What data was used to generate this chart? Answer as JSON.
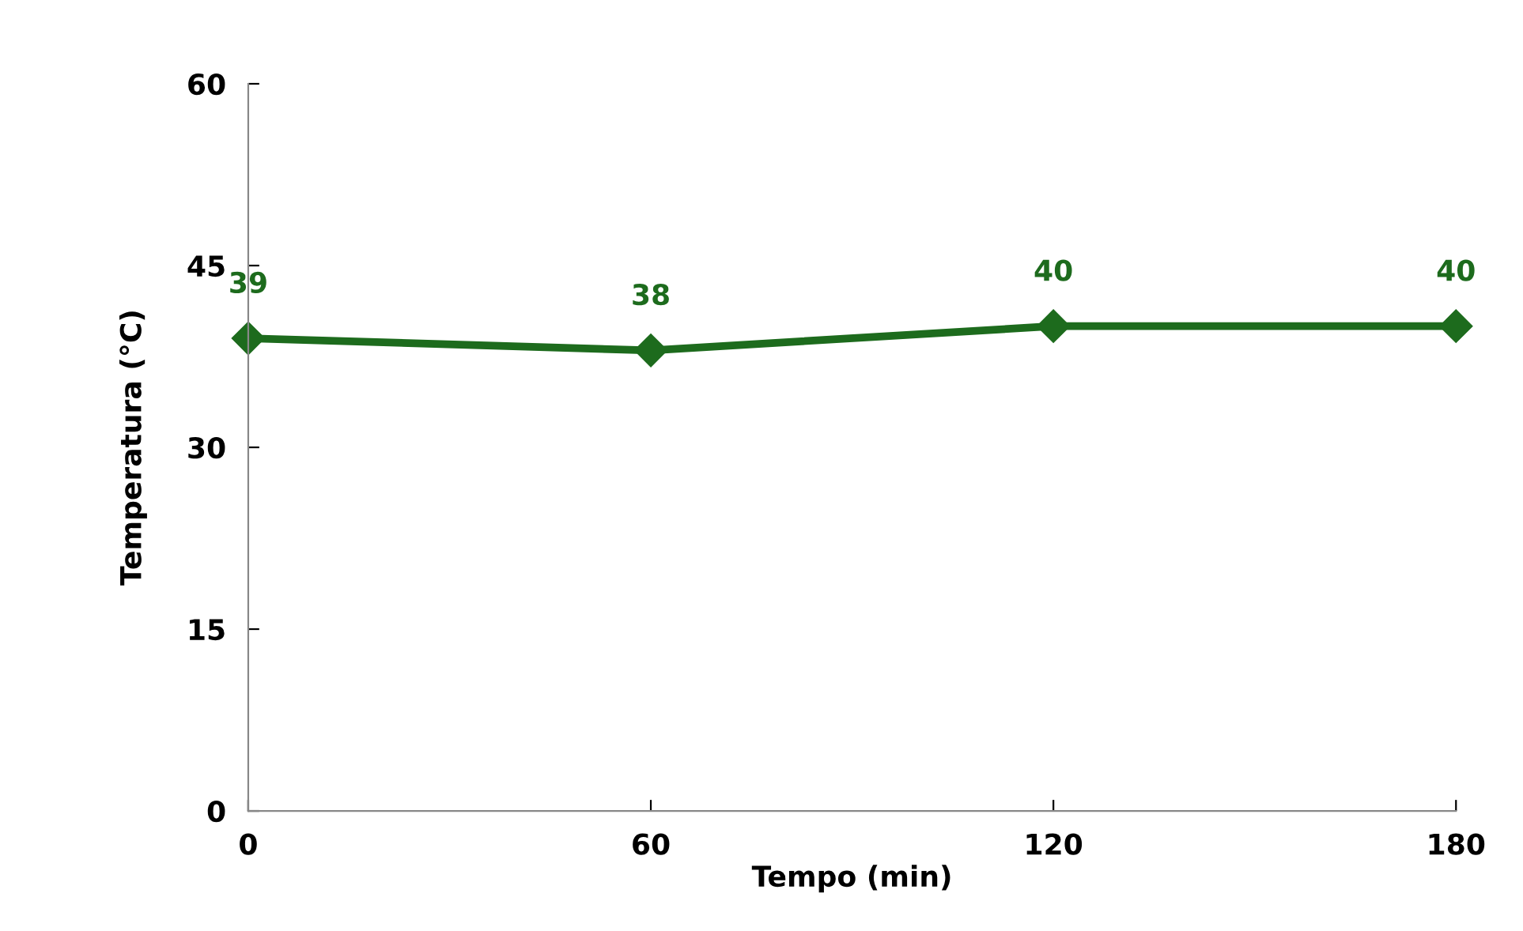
{
  "chart_data": {
    "type": "line",
    "xlabel": "Tempo (min)",
    "ylabel": "Temperatura (°C)",
    "x": [
      0,
      60,
      120,
      180
    ],
    "series": [
      {
        "color": "#1d6b1d",
        "values": [
          39,
          38,
          40,
          40
        ]
      }
    ],
    "xlim": [
      0,
      180
    ],
    "xticks": [
      0,
      60,
      120,
      180
    ],
    "ylim": [
      0,
      60
    ],
    "yticks": [
      0,
      15,
      30,
      45,
      60
    ],
    "marker": "diamond",
    "line_style": "solid",
    "data_labels": true,
    "grid": false
  }
}
